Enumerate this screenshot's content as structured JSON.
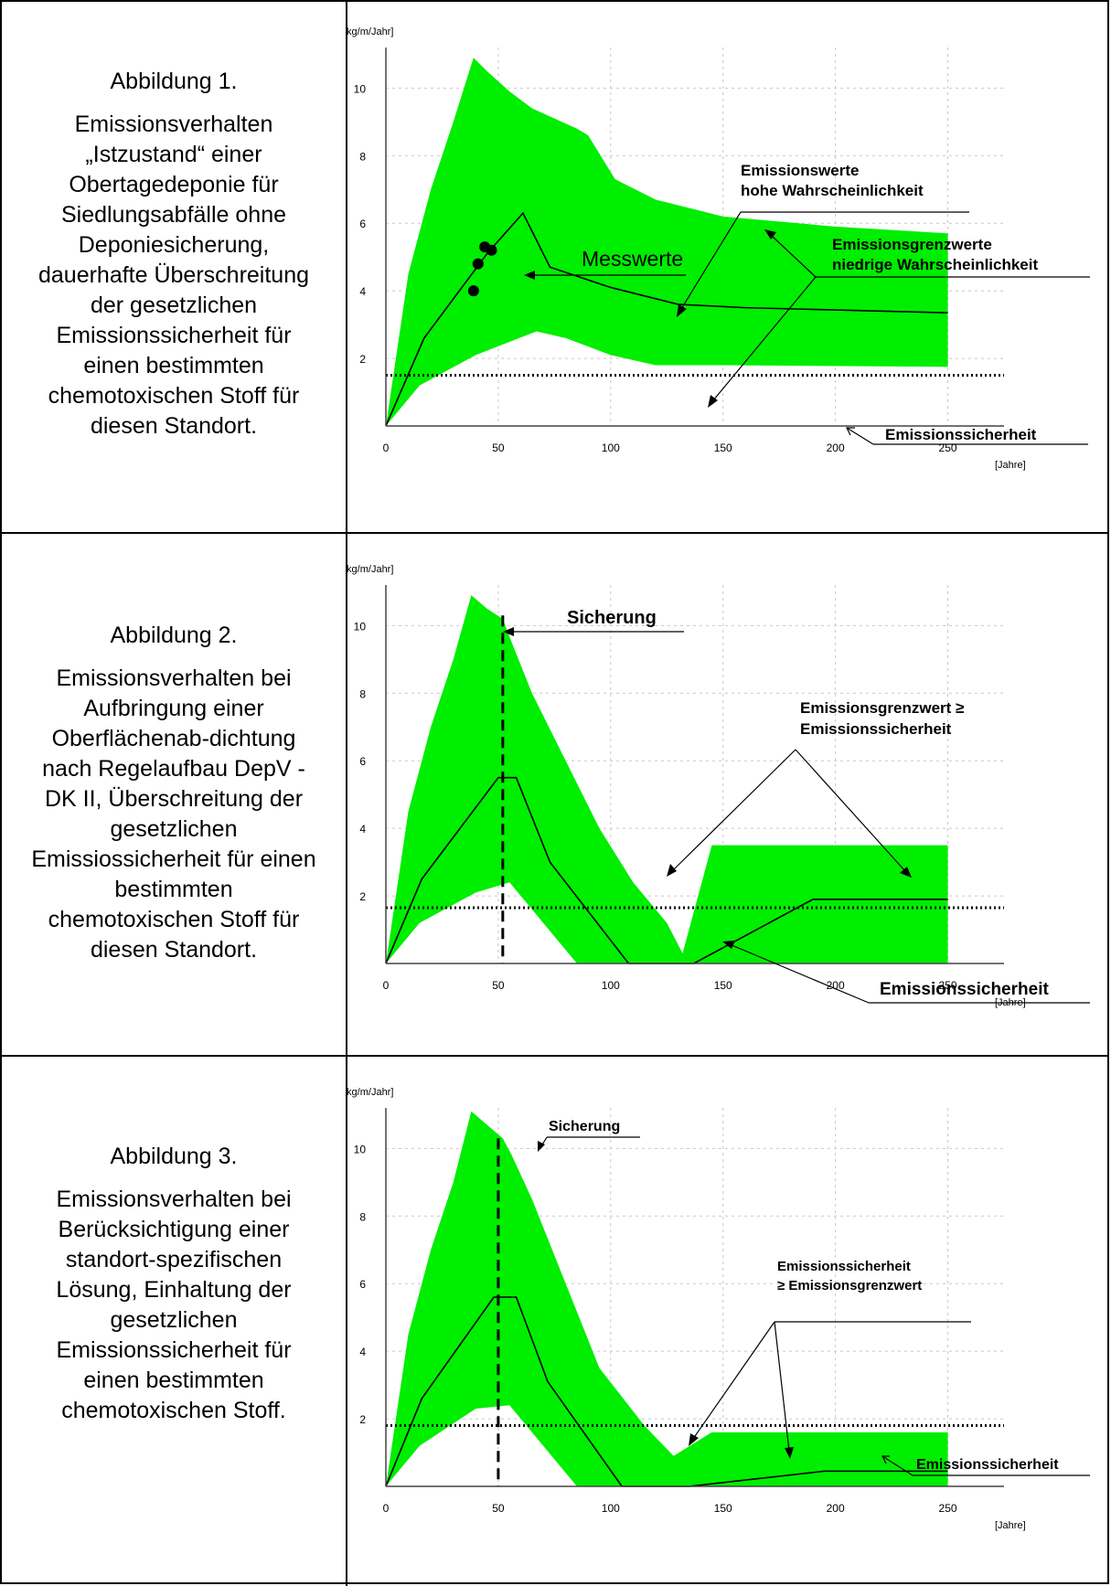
{
  "colors": {
    "band": "#00ee00",
    "line": "#000000",
    "grid": "#c8c8c8"
  },
  "panels": [
    {
      "caption_label": "Abbildung 1.",
      "caption_text": "Emissionsverhalten „Istzustand“ einer Obertagedeponie für Siedlungsabfälle ohne Deponiesicherung, dauerhafte Überschreitung der gesetzlichen Emissionssicherheit für einen bestimmten chemotoxischen Stoff für diesen Standort.",
      "annotations": {
        "messwerte": "Messwerte",
        "emissionswerte_1": "Emissionswerte",
        "emissionswerte_2": "hohe Wahrscheinlichkeit",
        "grenzwerte_1": "Emissionsgrenzwerte",
        "grenzwerte_2": "niedrige Wahrscheinlichkeit",
        "sicherheit": "Emissionssicherheit"
      }
    },
    {
      "caption_label": "Abbildung 2.",
      "caption_text": "Emissionsverhalten bei Aufbringung einer Oberflächenab-dichtung nach Regelaufbau DepV - DK II, Überschreitung der gesetzlichen Emissiossicherheit für einen bestimmten chemotoxischen Stoff für diesen Standort.",
      "annotations": {
        "sicherung": "Sicherung",
        "grenzwert_1": "Emissionsgrenzwert ≥",
        "grenzwert_2": "Emissionssicherheit",
        "sicherheit": "Emissionssicherheit"
      }
    },
    {
      "caption_label": "Abbildung 3.",
      "caption_text": "Emissionsverhalten bei Berücksichtigung einer standort-spezifischen Lösung, Einhaltung der gesetzlichen Emissionssicherheit für einen bestimmten chemotoxischen Stoff.",
      "annotations": {
        "sicherung": "Sicherung",
        "sicherheit_1": "Emissionssicherheit",
        "sicherheit_2": "≥ Emissionsgrenzwert",
        "sicherheit": "Emissionssicherheit"
      }
    }
  ],
  "chart_data": [
    {
      "type": "area",
      "ylabel": "[kg/m/Jahr]",
      "xlabel": "[Jahre]",
      "x_ticks": [
        0,
        50,
        100,
        150,
        200,
        250
      ],
      "y_ticks": [
        2,
        4,
        6,
        8,
        10
      ],
      "xlim": [
        0,
        275
      ],
      "ylim": [
        0,
        11.2
      ],
      "grid": true,
      "band_upper": [
        [
          0,
          0
        ],
        [
          10,
          4.5
        ],
        [
          20,
          7
        ],
        [
          30,
          9
        ],
        [
          39,
          10.9
        ],
        [
          45,
          10.5
        ],
        [
          55,
          9.9
        ],
        [
          65,
          9.4
        ],
        [
          75,
          9.1
        ],
        [
          85,
          8.8
        ],
        [
          90,
          8.6
        ],
        [
          102,
          7.3
        ],
        [
          120,
          6.7
        ],
        [
          150,
          6.2
        ],
        [
          200,
          5.9
        ],
        [
          250,
          5.7
        ]
      ],
      "band_lower": [
        [
          0,
          0
        ],
        [
          15,
          1.2
        ],
        [
          40,
          2.1
        ],
        [
          67,
          2.8
        ],
        [
          80,
          2.6
        ],
        [
          100,
          2.1
        ],
        [
          120,
          1.8
        ],
        [
          150,
          1.8
        ],
        [
          250,
          1.75
        ]
      ],
      "expected_line": [
        [
          0,
          0
        ],
        [
          17,
          2.6
        ],
        [
          45,
          5.1
        ],
        [
          61,
          6.3
        ],
        [
          73,
          4.7
        ],
        [
          100,
          4.1
        ],
        [
          130,
          3.6
        ],
        [
          160,
          3.5
        ],
        [
          250,
          3.35
        ]
      ],
      "measured_points": [
        [
          39,
          4.0
        ],
        [
          41,
          4.8
        ],
        [
          44,
          5.3
        ],
        [
          47,
          5.2
        ]
      ],
      "safety_level": 1.5,
      "safety_x_end": 275,
      "sicherung_x": null
    },
    {
      "type": "area",
      "ylabel": "[kg/m/Jahr]",
      "xlabel": "[Jahre]",
      "x_ticks": [
        0,
        50,
        100,
        150,
        200,
        250
      ],
      "y_ticks": [
        2,
        4,
        6,
        8,
        10
      ],
      "xlim": [
        0,
        275
      ],
      "ylim": [
        0,
        11.2
      ],
      "grid": true,
      "band_upper": [
        [
          0,
          0
        ],
        [
          10,
          4.5
        ],
        [
          20,
          7
        ],
        [
          30,
          9
        ],
        [
          38,
          10.9
        ],
        [
          45,
          10.5
        ],
        [
          52,
          10.2
        ],
        [
          56,
          9.5
        ],
        [
          65,
          8.0
        ],
        [
          80,
          6.0
        ],
        [
          95,
          4.0
        ],
        [
          110,
          2.4
        ],
        [
          125,
          1.2
        ],
        [
          132,
          0.3
        ],
        [
          145,
          3.5
        ],
        [
          250,
          3.5
        ]
      ],
      "band_lower": [
        [
          0,
          0
        ],
        [
          15,
          1.2
        ],
        [
          40,
          2.1
        ],
        [
          55,
          2.4
        ],
        [
          70,
          1.2
        ],
        [
          85,
          0
        ],
        [
          165,
          0
        ],
        [
          250,
          0
        ]
      ],
      "expected_line": [
        [
          0,
          0
        ],
        [
          16,
          2.5
        ],
        [
          50,
          5.5
        ],
        [
          58,
          5.5
        ],
        [
          73,
          3.0
        ],
        [
          108,
          0
        ],
        [
          137,
          0
        ],
        [
          190,
          1.9
        ],
        [
          250,
          1.9
        ]
      ],
      "measured_points": [],
      "safety_level": 1.65,
      "safety_x_end": 275,
      "sicherung_x": 52
    },
    {
      "type": "area",
      "ylabel": "[kg/m/Jahr]",
      "xlabel": "[Jahre]",
      "x_ticks": [
        0,
        50,
        100,
        150,
        200,
        250
      ],
      "y_ticks": [
        2,
        4,
        6,
        8,
        10
      ],
      "xlim": [
        0,
        275
      ],
      "ylim": [
        0,
        11.2
      ],
      "grid": true,
      "band_upper": [
        [
          0,
          0
        ],
        [
          10,
          4.5
        ],
        [
          20,
          7
        ],
        [
          30,
          9
        ],
        [
          38,
          11.1
        ],
        [
          45,
          10.7
        ],
        [
          52,
          10.3
        ],
        [
          56,
          9.8
        ],
        [
          65,
          8.5
        ],
        [
          80,
          6.0
        ],
        [
          95,
          3.5
        ],
        [
          115,
          1.8
        ],
        [
          128,
          0.9
        ],
        [
          145,
          1.6
        ],
        [
          250,
          1.6
        ]
      ],
      "band_lower": [
        [
          0,
          0
        ],
        [
          15,
          1.2
        ],
        [
          40,
          2.3
        ],
        [
          55,
          2.4
        ],
        [
          70,
          1.2
        ],
        [
          85,
          0
        ],
        [
          250,
          0
        ]
      ],
      "expected_line": [
        [
          0,
          0
        ],
        [
          16,
          2.6
        ],
        [
          48,
          5.6
        ],
        [
          58,
          5.6
        ],
        [
          72,
          3.1
        ],
        [
          105,
          0
        ],
        [
          135,
          0
        ],
        [
          195,
          0.45
        ],
        [
          250,
          0.45
        ]
      ],
      "measured_points": [],
      "safety_level": 1.8,
      "safety_x_end": 275,
      "sicherung_x": 50
    }
  ]
}
